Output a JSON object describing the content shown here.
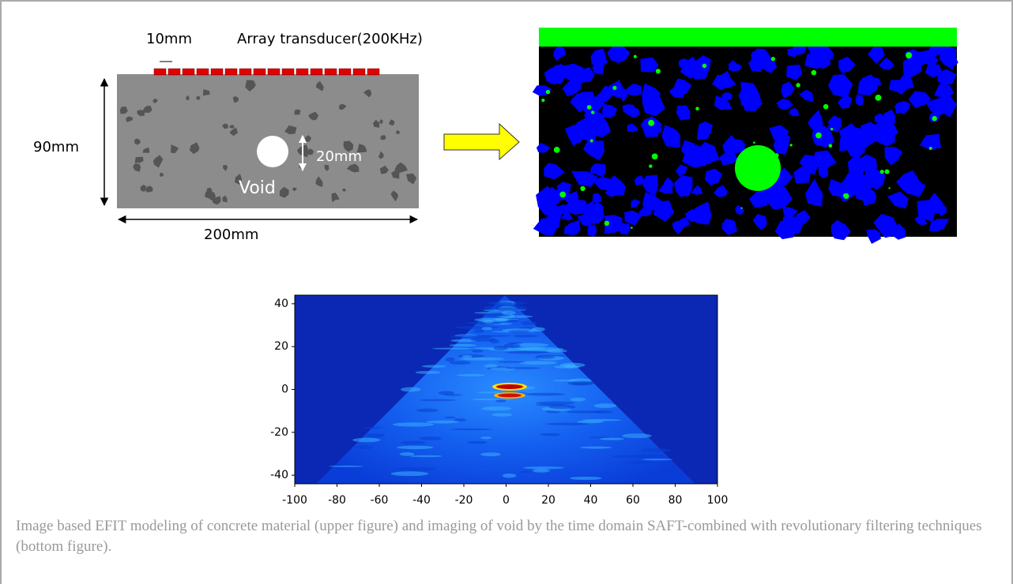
{
  "figure": {
    "diagram": {
      "pitch_label": "10mm",
      "transducer_label": "Array transducer(200KHz)",
      "height_label": "90mm",
      "void_size_label": "20mm",
      "void_label": "Void",
      "width_label": "200mm"
    },
    "plot": {
      "xlim": [
        -100,
        100
      ],
      "ylim": [
        -44,
        44
      ],
      "xticks": [
        -100,
        -80,
        -60,
        -40,
        -20,
        0,
        20,
        40,
        60,
        80,
        100
      ],
      "yticks": [
        -40,
        -20,
        0,
        20,
        40
      ]
    }
  },
  "caption": "Image based EFIT modeling of concrete material (upper figure) and imaging of void by the time domain SAFT-combined with revolutionary filtering techniques (bottom figure)."
}
